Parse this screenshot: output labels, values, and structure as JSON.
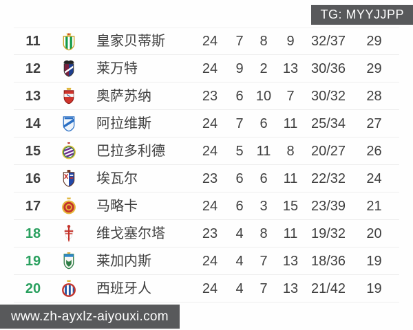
{
  "watermarks": {
    "top_right": "TG: MYYJJPP",
    "bottom_left": "www.zh-ayxlz-aiyouxi.com"
  },
  "colors": {
    "text": "#3f3f3f",
    "rank_green": "#2aa05f",
    "divider": "#ededed",
    "watermark_bg": "#58595b",
    "watermark_text": "#ffffff",
    "background": "#fefefe"
  },
  "table": {
    "columns": [
      "rank",
      "crest",
      "team",
      "played",
      "wins",
      "draws",
      "losses",
      "goals_for_against",
      "points"
    ],
    "rows": [
      {
        "rank": "11",
        "team": "皇家贝蒂斯",
        "played": "24",
        "wins": "7",
        "draws": "8",
        "losses": "9",
        "goals": "32/37",
        "points": "29",
        "rank_highlight": false,
        "logo": "real-betis-crest"
      },
      {
        "rank": "12",
        "team": "莱万特",
        "played": "24",
        "wins": "9",
        "draws": "2",
        "losses": "13",
        "goals": "30/36",
        "points": "29",
        "rank_highlight": false,
        "logo": "levante-crest"
      },
      {
        "rank": "13",
        "team": "奥萨苏纳",
        "played": "23",
        "wins": "6",
        "draws": "10",
        "losses": "7",
        "goals": "30/32",
        "points": "28",
        "rank_highlight": false,
        "logo": "osasuna-crest"
      },
      {
        "rank": "14",
        "team": "阿拉维斯",
        "played": "24",
        "wins": "7",
        "draws": "6",
        "losses": "11",
        "goals": "25/34",
        "points": "27",
        "rank_highlight": false,
        "logo": "alaves-crest"
      },
      {
        "rank": "15",
        "team": "巴拉多利德",
        "played": "24",
        "wins": "5",
        "draws": "11",
        "losses": "8",
        "goals": "20/27",
        "points": "26",
        "rank_highlight": false,
        "logo": "valladolid-crest"
      },
      {
        "rank": "16",
        "team": "埃瓦尔",
        "played": "23",
        "wins": "6",
        "draws": "6",
        "losses": "11",
        "goals": "22/32",
        "points": "24",
        "rank_highlight": false,
        "logo": "eibar-crest"
      },
      {
        "rank": "17",
        "team": "马略卡",
        "played": "24",
        "wins": "6",
        "draws": "3",
        "losses": "15",
        "goals": "23/39",
        "points": "21",
        "rank_highlight": false,
        "logo": "mallorca-crest"
      },
      {
        "rank": "18",
        "team": "维戈塞尔塔",
        "played": "23",
        "wins": "4",
        "draws": "8",
        "losses": "11",
        "goals": "19/32",
        "points": "20",
        "rank_highlight": true,
        "logo": "celta-vigo-crest"
      },
      {
        "rank": "19",
        "team": "莱加内斯",
        "played": "24",
        "wins": "4",
        "draws": "7",
        "losses": "13",
        "goals": "18/36",
        "points": "19",
        "rank_highlight": true,
        "logo": "leganes-crest"
      },
      {
        "rank": "20",
        "team": "西班牙人",
        "played": "24",
        "wins": "4",
        "draws": "7",
        "losses": "13",
        "goals": "21/42",
        "points": "19",
        "rank_highlight": true,
        "logo": "espanyol-crest"
      }
    ]
  }
}
